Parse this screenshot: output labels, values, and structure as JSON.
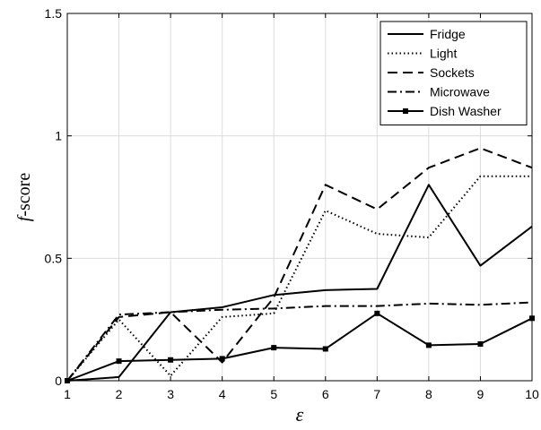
{
  "chart_data": {
    "type": "line",
    "x": [
      1,
      2,
      3,
      4,
      5,
      6,
      7,
      8,
      9,
      10
    ],
    "xlabel": "ε",
    "ylabel_italic": "f",
    "ylabel_rest": "-score",
    "xlim": [
      1,
      10
    ],
    "ylim": [
      0,
      1.5
    ],
    "xticks": [
      1,
      2,
      3,
      4,
      5,
      6,
      7,
      8,
      9,
      10
    ],
    "yticks": [
      0,
      0.5,
      1,
      1.5
    ],
    "ytick_labels": [
      "0",
      "0.5",
      "1",
      "1.5"
    ],
    "grid": true,
    "legend_position": "top-right",
    "series": [
      {
        "name": "Fridge",
        "style": "solid",
        "marker": "none",
        "values": [
          0.0,
          0.015,
          0.28,
          0.3,
          0.35,
          0.37,
          0.375,
          0.8,
          0.47,
          0.63
        ]
      },
      {
        "name": "Light",
        "style": "dotted",
        "marker": "none",
        "values": [
          0.0,
          0.25,
          0.02,
          0.26,
          0.275,
          0.695,
          0.6,
          0.585,
          0.835,
          0.835
        ]
      },
      {
        "name": "Sockets",
        "style": "dashed",
        "marker": "none",
        "values": [
          0.0,
          0.26,
          0.28,
          0.075,
          0.34,
          0.8,
          0.7,
          0.87,
          0.95,
          0.87
        ]
      },
      {
        "name": "Microwave",
        "style": "dashdot",
        "marker": "none",
        "values": [
          0.0,
          0.27,
          0.28,
          0.29,
          0.295,
          0.305,
          0.305,
          0.315,
          0.31,
          0.32
        ]
      },
      {
        "name": "Dish Washer",
        "style": "solid",
        "marker": "square",
        "values": [
          0.0,
          0.08,
          0.085,
          0.09,
          0.135,
          0.13,
          0.275,
          0.145,
          0.15,
          0.255
        ]
      }
    ]
  }
}
